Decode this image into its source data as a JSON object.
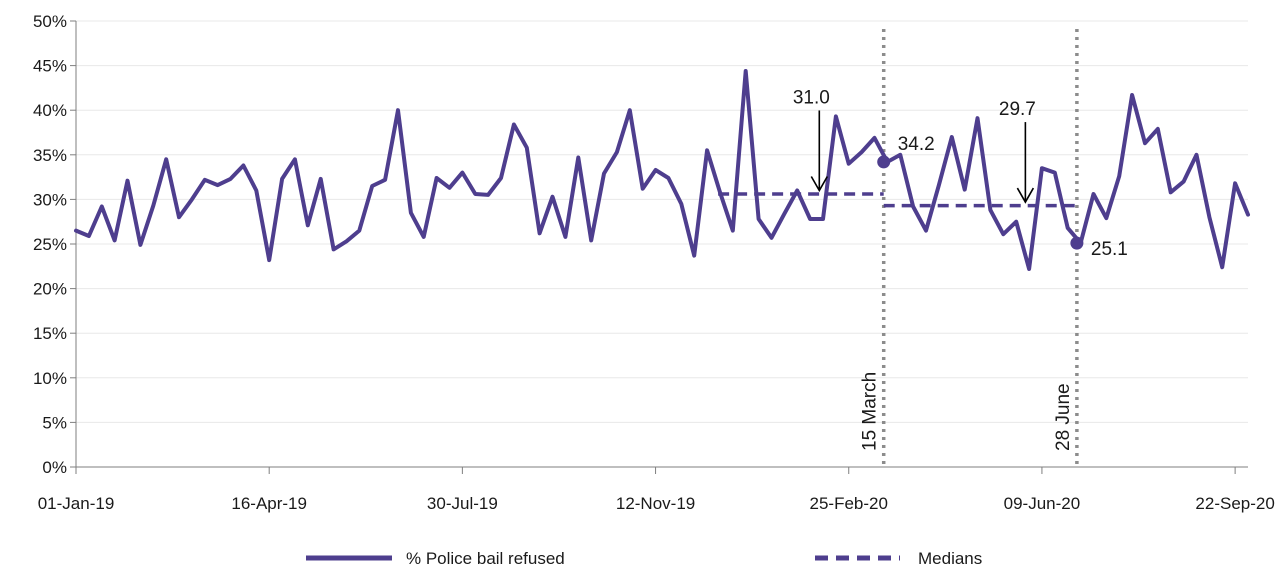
{
  "chart_data": {
    "type": "line",
    "title": "",
    "xlabel": "",
    "ylabel": "",
    "x_start": "01-Jan-19",
    "x_end": "29-Sep-20",
    "x_interval_days": 7,
    "x_ticks": [
      "01-Jan-19",
      "16-Apr-19",
      "30-Jul-19",
      "12-Nov-19",
      "25-Feb-20",
      "09-Jun-20",
      "22-Sep-20"
    ],
    "ylim": [
      0,
      50
    ],
    "y_ticks": [
      0,
      5,
      10,
      15,
      20,
      25,
      30,
      35,
      40,
      45,
      50
    ],
    "y_tick_suffix": "%",
    "grid": "horizontal",
    "colors": {
      "line": "#4e3e8e",
      "median": "#4e3e8e",
      "event_line": "#8c8c8c",
      "axis": "#7f7f7f",
      "grid": "#e8e8e8"
    },
    "series": [
      {
        "name": "% Police bail refused",
        "style": "solid",
        "values": [
          26.5,
          25.9,
          29.2,
          25.4,
          32.1,
          24.9,
          29.3,
          34.5,
          28.0,
          30.0,
          32.2,
          31.6,
          32.3,
          33.8,
          31.0,
          23.2,
          32.3,
          34.5,
          27.1,
          32.3,
          24.4,
          25.3,
          26.5,
          31.5,
          32.2,
          40.0,
          28.5,
          25.8,
          32.4,
          31.3,
          33.0,
          30.6,
          30.5,
          32.4,
          38.4,
          35.8,
          26.2,
          30.3,
          25.8,
          34.7,
          25.4,
          32.9,
          35.3,
          40.0,
          31.2,
          33.3,
          32.4,
          29.5,
          23.7,
          35.5,
          30.8,
          26.5,
          44.4,
          27.8,
          25.7,
          28.4,
          31.0,
          27.8,
          27.8,
          39.3,
          34.0,
          35.3,
          36.9,
          34.2,
          35.0,
          29.2,
          26.5,
          31.6,
          37.0,
          31.1,
          39.1,
          28.8,
          26.1,
          27.5,
          22.2,
          33.5,
          33.0,
          26.8,
          25.1,
          30.6,
          27.9,
          32.6,
          41.7,
          36.3,
          37.9,
          30.8,
          32.0,
          35.0,
          28.0,
          22.4,
          31.8,
          28.3
        ]
      },
      {
        "name": "Medians",
        "style": "dashed",
        "segments": [
          {
            "from": "16-Dec-19",
            "to": "15-Mar-20",
            "value": 30.6
          },
          {
            "from": "15-Mar-20",
            "to": "28-Jun-20",
            "value": 29.3
          }
        ]
      }
    ],
    "events": [
      {
        "label": "15 March",
        "date": "15-Mar-20"
      },
      {
        "label": "28 June",
        "date": "28-Jun-20"
      }
    ],
    "annotations": [
      {
        "label": "31.0",
        "type": "arrow",
        "date": "09-Feb-20",
        "value": 31.0
      },
      {
        "label": "29.7",
        "type": "arrow",
        "date": "31-May-20",
        "value": 29.7
      },
      {
        "label": "34.2",
        "type": "point",
        "date": "15-Mar-20",
        "value": 34.2
      },
      {
        "label": "25.1",
        "type": "point",
        "date": "28-Jun-20",
        "value": 25.1
      }
    ],
    "legend": {
      "position": "bottom",
      "items": [
        "% Police bail refused",
        "Medians"
      ]
    }
  }
}
